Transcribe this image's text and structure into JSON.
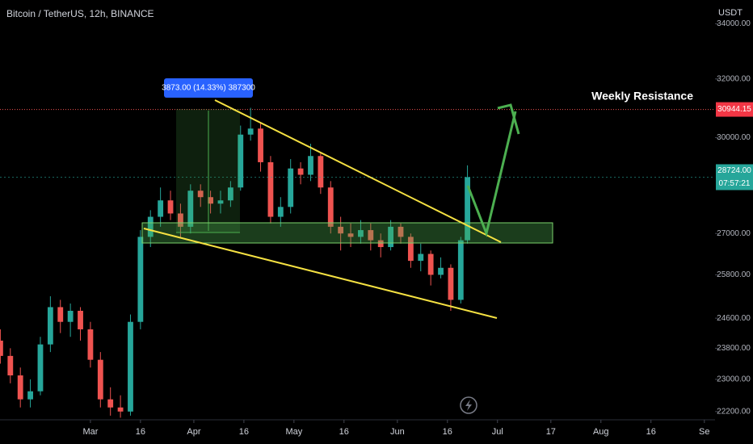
{
  "chart_data": {
    "type": "candlestick",
    "title": "Bitcoin / TetherUS, 12h, BINANCE",
    "y_unit": "USDT",
    "log_scale": true,
    "up_color": "#26a69a",
    "down_color": "#ef5350",
    "xlim": [
      -27.1,
      187.2
    ],
    "xticks": [
      {
        "value": 0,
        "label": "Mar"
      },
      {
        "value": 15,
        "label": "16"
      },
      {
        "value": 31,
        "label": "Apr"
      },
      {
        "value": 46,
        "label": "16"
      },
      {
        "value": 61,
        "label": "May"
      },
      {
        "value": 76,
        "label": "16"
      },
      {
        "value": 92,
        "label": "Jun"
      },
      {
        "value": 107,
        "label": "16"
      },
      {
        "value": 122,
        "label": "Jul"
      },
      {
        "value": 138,
        "label": "17"
      },
      {
        "value": 153,
        "label": "Aug"
      },
      {
        "value": 168,
        "label": "16"
      },
      {
        "value": 184,
        "label": "Se"
      }
    ],
    "ylim": [
      22000,
      34900
    ],
    "yticks": [
      {
        "value": 22200,
        "label": "22200.00"
      },
      {
        "value": 23000,
        "label": "23000.00"
      },
      {
        "value": 23800,
        "label": "23800.00"
      },
      {
        "value": 24600,
        "label": "24600.00"
      },
      {
        "value": 25800,
        "label": "25800.00"
      },
      {
        "value": 27000,
        "label": "27000.00"
      },
      {
        "value": 30000,
        "label": "30000.00"
      },
      {
        "value": 32000,
        "label": "32000.00"
      },
      {
        "value": 34000,
        "label": "34000.00"
      }
    ],
    "candles": {
      "x": [
        -27,
        -24,
        -21,
        -18,
        -15,
        -12,
        -9,
        -6,
        -3,
        0,
        3,
        6,
        9,
        12,
        15,
        18,
        21,
        24,
        27,
        30,
        33,
        36,
        39,
        42,
        45,
        48,
        51,
        54,
        57,
        60,
        63,
        66,
        69,
        72,
        75,
        78,
        81,
        84,
        87,
        90,
        93,
        96,
        99,
        102,
        105,
        108,
        111,
        113
      ],
      "open": [
        24000,
        23600,
        23100,
        22500,
        22700,
        23900,
        24900,
        24500,
        24800,
        24300,
        23500,
        22500,
        22300,
        22200,
        24500,
        26900,
        27500,
        28000,
        27600,
        27200,
        28300,
        28100,
        27900,
        28000,
        28400,
        30100,
        30300,
        29200,
        27500,
        27800,
        29000,
        28800,
        29400,
        28400,
        27200,
        27000,
        26900,
        27100,
        26800,
        26600,
        27200,
        26900,
        26200,
        26400,
        25800,
        26000,
        25100,
        26800
      ],
      "high": [
        24300,
        23800,
        23300,
        23000,
        24100,
        25200,
        25100,
        25000,
        24900,
        24500,
        23700,
        22800,
        22600,
        24700,
        27100,
        27700,
        28400,
        28300,
        27900,
        28500,
        28500,
        28300,
        28300,
        28600,
        30400,
        31000,
        30500,
        29400,
        28100,
        29300,
        29200,
        29800,
        29500,
        28600,
        27500,
        27300,
        27400,
        27300,
        27000,
        27400,
        27300,
        27000,
        26700,
        26500,
        26300,
        26100,
        26900,
        29100
      ],
      "low": [
        23400,
        22900,
        22300,
        22300,
        22600,
        23700,
        24200,
        24100,
        24000,
        23300,
        22300,
        22100,
        22050,
        22100,
        24300,
        26600,
        27200,
        27400,
        26900,
        27000,
        27800,
        27600,
        27600,
        27800,
        28300,
        29900,
        28900,
        27300,
        27200,
        27600,
        28500,
        28600,
        28200,
        27000,
        26500,
        26600,
        26700,
        26500,
        26300,
        26500,
        26700,
        26000,
        25900,
        25500,
        25700,
        24800,
        25000,
        26700
      ],
      "close": [
        23600,
        23100,
        22500,
        22700,
        23900,
        24900,
        24500,
        24800,
        24300,
        23500,
        22500,
        22300,
        22200,
        24500,
        26900,
        27500,
        28000,
        27600,
        27200,
        28300,
        28100,
        27900,
        28000,
        28400,
        30100,
        30300,
        29200,
        27500,
        27800,
        29000,
        28800,
        29400,
        28400,
        27200,
        27000,
        26900,
        27100,
        26800,
        26600,
        27200,
        26900,
        26200,
        26400,
        25800,
        26000,
        25100,
        26800,
        28724
      ]
    },
    "current_price": {
      "value": 28724,
      "label": "28724.00",
      "countdown": "07:57:21"
    },
    "resistance": {
      "value": 30944.15,
      "label": "30944.15",
      "name": "Weekly Resistance"
    },
    "measure_label": "3873.00 (14.33%) 387300"
  }
}
